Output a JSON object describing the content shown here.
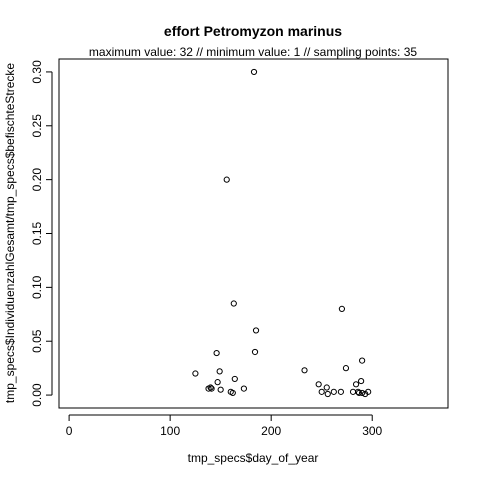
{
  "chart_data": {
    "type": "scatter",
    "title": "effort Petromyzon marinus",
    "subtitle": "maximum value: 32  //  minimum value: 1  // sampling points: 35",
    "xlabel": "tmp_specs$day_of_year",
    "ylabel": "tmp_specs$IndividuenzahlGesamt/tmp_specs$befischteStrecke",
    "xlim": [
      -10,
      375
    ],
    "ylim": [
      -0.012,
      0.312
    ],
    "xticks": [
      0,
      100,
      200,
      300
    ],
    "yticks": [
      0.0,
      0.05,
      0.1,
      0.15,
      0.2,
      0.25,
      0.3
    ],
    "ytick_labels": [
      "0.00",
      "0.05",
      "0.10",
      "0.15",
      "0.20",
      "0.25",
      "0.30"
    ],
    "grid": false,
    "marker": "open-circle",
    "points": [
      {
        "x": 183,
        "y": 0.3
      },
      {
        "x": 156,
        "y": 0.2
      },
      {
        "x": 163,
        "y": 0.085
      },
      {
        "x": 270,
        "y": 0.08
      },
      {
        "x": 185,
        "y": 0.06
      },
      {
        "x": 184,
        "y": 0.04
      },
      {
        "x": 146,
        "y": 0.039
      },
      {
        "x": 125,
        "y": 0.02
      },
      {
        "x": 149,
        "y": 0.022
      },
      {
        "x": 164,
        "y": 0.015
      },
      {
        "x": 147,
        "y": 0.012
      },
      {
        "x": 233,
        "y": 0.023
      },
      {
        "x": 274,
        "y": 0.025
      },
      {
        "x": 290,
        "y": 0.032
      },
      {
        "x": 138,
        "y": 0.006
      },
      {
        "x": 141,
        "y": 0.006
      },
      {
        "x": 150,
        "y": 0.005
      },
      {
        "x": 160,
        "y": 0.003
      },
      {
        "x": 162,
        "y": 0.002
      },
      {
        "x": 173,
        "y": 0.006
      },
      {
        "x": 247,
        "y": 0.01
      },
      {
        "x": 250,
        "y": 0.003
      },
      {
        "x": 255,
        "y": 0.007
      },
      {
        "x": 256,
        "y": 0.001
      },
      {
        "x": 262,
        "y": 0.003
      },
      {
        "x": 269,
        "y": 0.003
      },
      {
        "x": 281,
        "y": 0.003
      },
      {
        "x": 284,
        "y": 0.01
      },
      {
        "x": 286,
        "y": 0.003
      },
      {
        "x": 289,
        "y": 0.013
      },
      {
        "x": 290,
        "y": 0.002
      },
      {
        "x": 293,
        "y": 0.001
      },
      {
        "x": 296,
        "y": 0.003
      },
      {
        "x": 287,
        "y": 0.002
      },
      {
        "x": 140,
        "y": 0.007
      }
    ]
  }
}
